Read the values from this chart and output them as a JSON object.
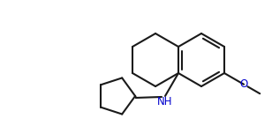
{
  "bg_color": "#ffffff",
  "line_color": "#1a1a1a",
  "line_width": 1.5,
  "text_color": "#0000cd",
  "font_size": 8.5,
  "NH_label": "NH",
  "O_label": "O"
}
